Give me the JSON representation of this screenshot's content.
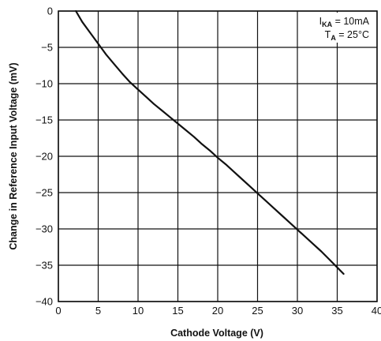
{
  "chart_data": {
    "type": "line",
    "xlabel": "Cathode Voltage (V)",
    "ylabel": "Change in Reference Input Voltage (mV)",
    "xlim": [
      0,
      40
    ],
    "ylim": [
      -40,
      0
    ],
    "xticks": [
      0,
      5,
      10,
      15,
      20,
      25,
      30,
      35,
      40
    ],
    "yticks": [
      0,
      -5,
      -10,
      -15,
      -20,
      -25,
      -30,
      -35,
      -40
    ],
    "grid": true,
    "legend": {
      "position": "top-right",
      "lines": [
        {
          "main": "I",
          "sub": "KA",
          "rest": " = 10mA"
        },
        {
          "main": "T",
          "sub": "A",
          "rest": " = 25°C"
        }
      ]
    },
    "series": [
      {
        "x": [
          2.2,
          3,
          4,
          5,
          6,
          7,
          8,
          9,
          10,
          11,
          12,
          13,
          14,
          15,
          16,
          17,
          18,
          19,
          20,
          21,
          22,
          23,
          24,
          25,
          26,
          27,
          28,
          29,
          30,
          31,
          32,
          33,
          34,
          35,
          35.8
        ],
        "y": [
          0,
          -1.5,
          -3,
          -4.5,
          -6,
          -7.3,
          -8.6,
          -9.8,
          -10.8,
          -11.8,
          -12.8,
          -13.7,
          -14.6,
          -15.5,
          -16.4,
          -17.3,
          -18.3,
          -19.2,
          -20.2,
          -21.1,
          -22.1,
          -23.1,
          -24.1,
          -25.1,
          -26.1,
          -27.1,
          -28.1,
          -29.1,
          -30.1,
          -31.1,
          -32.1,
          -33.1,
          -34.2,
          -35.3,
          -36.2
        ]
      }
    ]
  }
}
